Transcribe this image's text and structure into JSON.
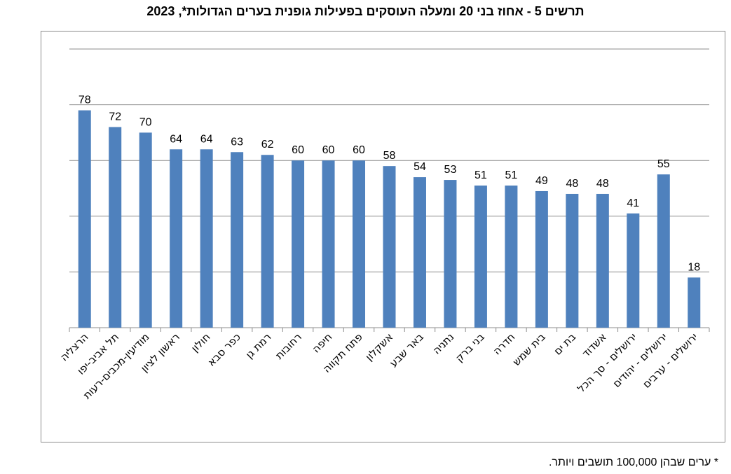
{
  "chart_data": {
    "type": "bar",
    "title": "תרשים 5 - אחוז בני 20 ומעלה העוסקים בפעילות גופנית בערים הגדולות*, 2023",
    "categories": [
      "הרצליה",
      "תל אביב-יפו",
      "מודיעין-מכבים-רעות",
      "ראשון לציון",
      "חולון",
      "כפר סבא",
      "רמת גן",
      "רחובות",
      "חיפה",
      "פתח תקווה",
      "אשקלון",
      "באר שבע",
      "נתניה",
      "בני ברק",
      "חדרה",
      "בית שמש",
      "בת ים",
      "אשדוד",
      "ירושלים - סך הכל",
      "ירושלים - יהודים",
      "ירושלים - ערבים"
    ],
    "values": [
      78,
      72,
      70,
      64,
      64,
      63,
      62,
      60,
      60,
      60,
      58,
      54,
      53,
      51,
      51,
      49,
      48,
      48,
      41,
      55,
      18
    ],
    "ylim": [
      0,
      100
    ],
    "yticks": [
      0,
      20,
      40,
      60,
      80,
      100
    ],
    "grid": true,
    "y_tick_labels_shown": false,
    "bar_color": "#4f81bd"
  },
  "footnote": "* ערים שבהן 100,000 תושבים ויותר."
}
